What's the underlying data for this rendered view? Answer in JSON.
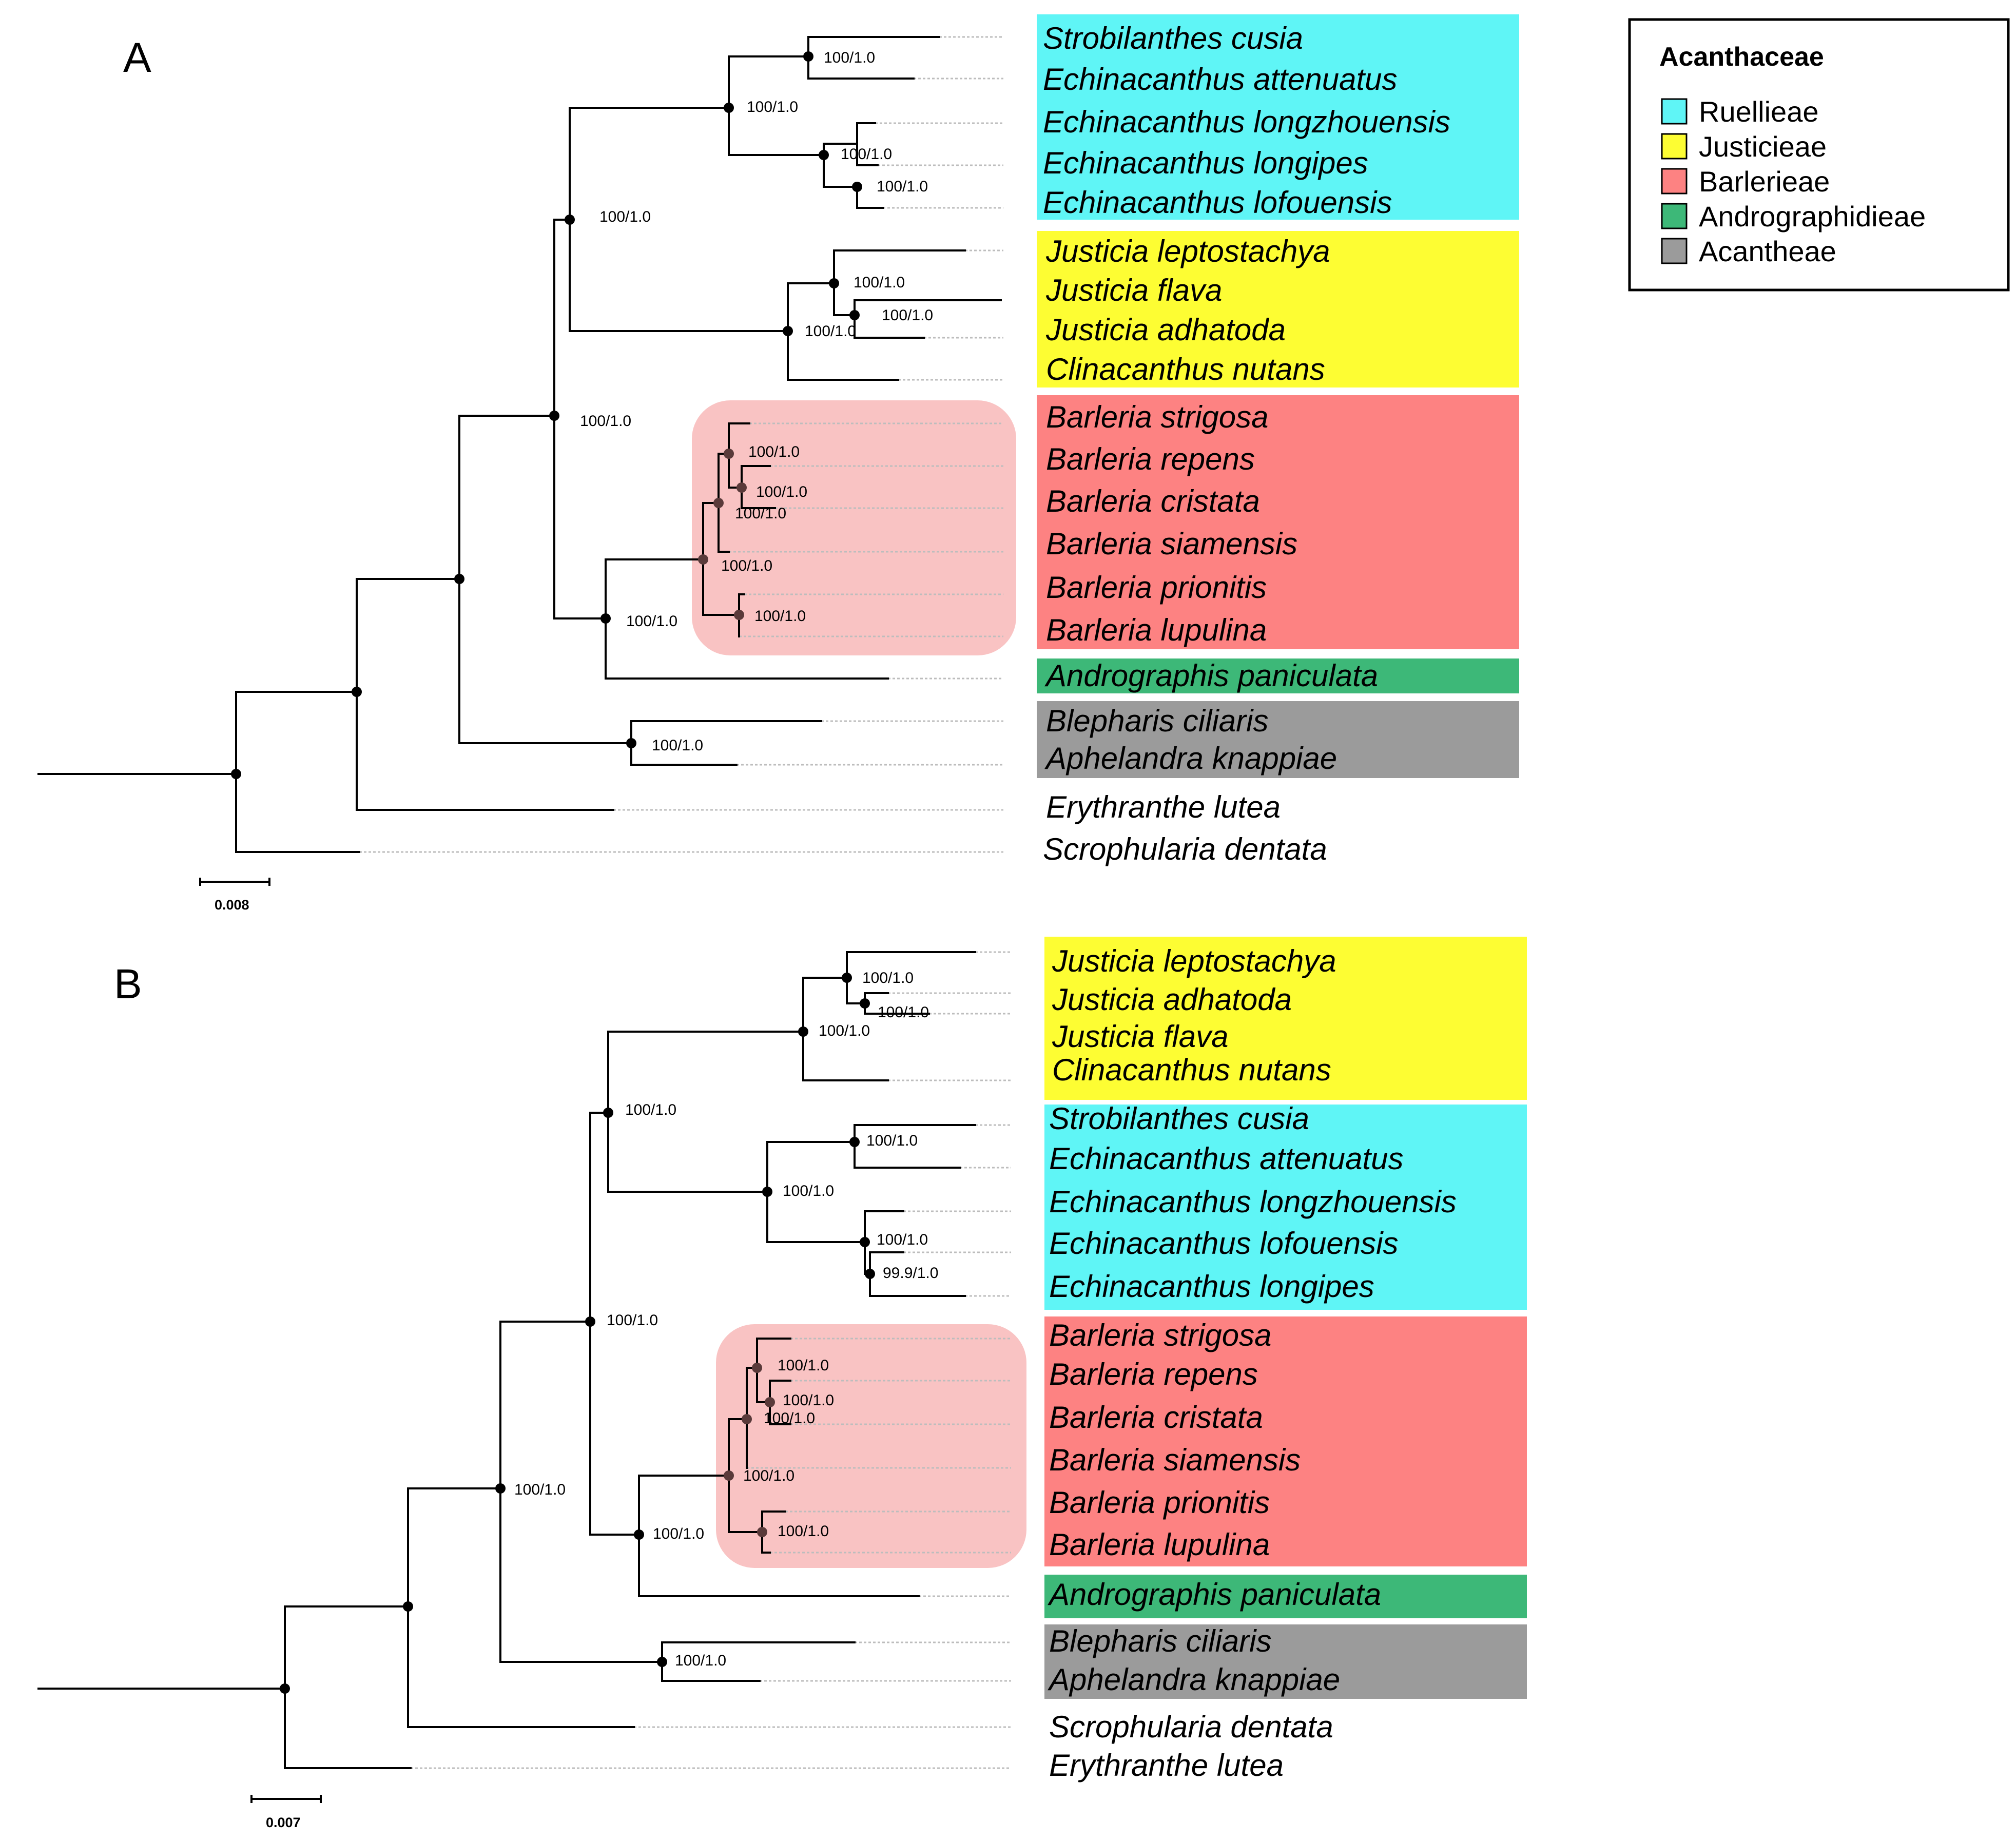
{
  "panels": {
    "A": {
      "label": "A",
      "scale": "0.008",
      "taxa": [
        "Strobilanthes cusia",
        "Echinacanthus attenuatus",
        "Echinacanthus longzhouensis",
        "Echinacanthus longipes",
        "Echinacanthus lofouensis",
        "Justicia leptostachya",
        "Justicia flava",
        "Justicia adhatoda",
        "Clinacanthus nutans",
        "Barleria strigosa",
        "Barleria repens",
        "Barleria cristata",
        "Barleria siamensis",
        "Barleria prionitis",
        "Barleria lupulina",
        "Andrographis paniculata",
        "Blepharis ciliaris",
        "Aphelandra knappiae",
        "Erythranthe lutea",
        "Scrophularia dentata"
      ],
      "supports": [
        "100/1.0",
        "100/1.0",
        "100/1.0",
        "100/1.0",
        "100/1.0",
        "100/1.0",
        "100/1.0",
        "100/1.0",
        "100/1.0",
        "100/1.0",
        "100/1.0",
        "100/1.0",
        "100/1.0",
        "100/1.0",
        "100/1.0"
      ]
    },
    "B": {
      "label": "B",
      "scale": "0.007",
      "taxa": [
        "Justicia leptostachya",
        "Justicia adhatoda",
        "Justicia flava",
        "Clinacanthus nutans",
        "Strobilanthes cusia",
        "Echinacanthus attenuatus",
        "Echinacanthus longzhouensis",
        "Echinacanthus lofouensis",
        "Echinacanthus longipes",
        "Barleria strigosa",
        "Barleria repens",
        "Barleria cristata",
        "Barleria siamensis",
        "Barleria prionitis",
        "Barleria lupulina",
        "Andrographis paniculata",
        "Blepharis ciliaris",
        "Aphelandra knappiae",
        "Scrophularia dentata",
        "Erythranthe lutea"
      ],
      "supports": [
        "100/1.0",
        "100/1.0",
        "100/1.0",
        "100/1.0",
        "100/1.0",
        "100/1.0",
        "100/1.0",
        "99.9/1.0",
        "100/1.0",
        "100/1.0",
        "100/1.0",
        "100/1.0",
        "100/1.0",
        "100/1.0",
        "100/1.0",
        "100/1.0"
      ]
    }
  },
  "legend": {
    "title": "Acanthaceae",
    "items": [
      {
        "label": "Ruellieae",
        "color": "#5ff5f6"
      },
      {
        "label": "Justicieae",
        "color": "#fdfd33"
      },
      {
        "label": "Barlerieae",
        "color": "#fd8282"
      },
      {
        "label": "Andrographidieae",
        "color": "#3db878"
      },
      {
        "label": "Acantheae",
        "color": "#9b9b9b"
      }
    ]
  },
  "colors": {
    "ruellieae": "#5ff5f6",
    "justicieae": "#fdfd33",
    "barlerieae": "#fd8282",
    "andrographidieae": "#3db878",
    "acantheae": "#9b9b9b",
    "highlight": "#f7b4b4"
  }
}
